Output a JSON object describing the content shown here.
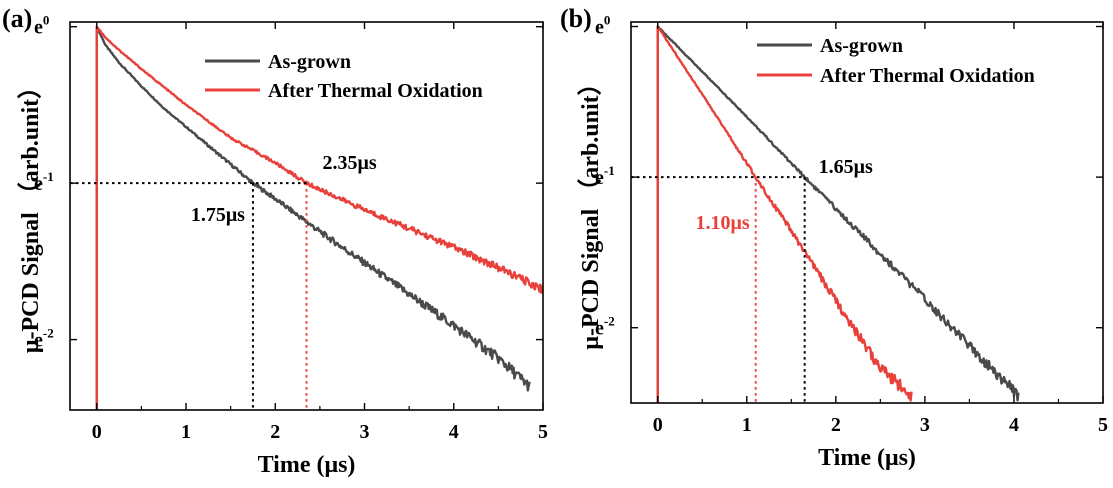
{
  "chart_data": [
    {
      "panel_label": "(a)",
      "type": "line",
      "xlabel": "Time (μs)",
      "ylabel": "μ-PCD Signal （arb.unit）",
      "xlim": [
        -0.3,
        5
      ],
      "ylim_ln": [
        -2.45,
        0.03
      ],
      "y_scale": "log-e",
      "xticks": [
        0,
        1,
        2,
        3,
        4,
        5
      ],
      "xtick_labels": [
        "0",
        "1",
        "2",
        "3",
        "4",
        "5"
      ],
      "yticks_ln": [
        0,
        -1,
        -2
      ],
      "ytick_labels": [
        {
          "base": "e",
          "exp": "0"
        },
        {
          "base": "e",
          "exp": "-1"
        },
        {
          "base": "e",
          "exp": "-2"
        }
      ],
      "legend_position": "top-right",
      "series": [
        {
          "name": "As-grown",
          "color": "#4a4a4a",
          "lifetime_us": 1.75,
          "end_x": 4.85,
          "x": [
            0,
            0.1,
            0.25,
            0.5,
            0.75,
            1.0,
            1.25,
            1.5,
            1.75,
            2.0,
            2.5,
            3.0,
            3.5,
            4.0,
            4.5,
            4.85
          ],
          "y_ln": [
            0,
            -0.12,
            -0.23,
            -0.38,
            -0.52,
            -0.64,
            -0.76,
            -0.88,
            -1.0,
            -1.1,
            -1.31,
            -1.51,
            -1.71,
            -1.91,
            -2.12,
            -2.3
          ]
        },
        {
          "name": "After Thermal Oxidation",
          "color": "#e8403a",
          "lifetime_us": 2.35,
          "end_x": 5.0,
          "x": [
            0,
            0.1,
            0.25,
            0.5,
            1.0,
            1.5,
            2.0,
            2.35,
            2.5,
            3.0,
            3.5,
            4.0,
            4.5,
            5.0
          ],
          "y_ln": [
            0,
            -0.07,
            -0.15,
            -0.27,
            -0.5,
            -0.71,
            -0.87,
            -1.0,
            -1.04,
            -1.17,
            -1.29,
            -1.41,
            -1.54,
            -1.68
          ]
        }
      ],
      "annotations": [
        {
          "text": "2.35μs",
          "x": 2.35,
          "y_ln": -1.0,
          "color": "#000000"
        },
        {
          "text": "1.75μs",
          "x": 1.75,
          "y_ln": -1.0,
          "color": "#000000"
        }
      ]
    },
    {
      "panel_label": "(b)",
      "type": "line",
      "xlabel": "Time (μs)",
      "ylabel": "μ-PCD Signal （arb.unit）",
      "xlim": [
        -0.3,
        5
      ],
      "ylim_ln": [
        -2.5,
        0.03
      ],
      "y_scale": "log-e",
      "xticks": [
        0,
        1,
        2,
        3,
        4,
        5
      ],
      "xtick_labels": [
        "0",
        "1",
        "2",
        "3",
        "4",
        "5"
      ],
      "yticks_ln": [
        0,
        -1,
        -2
      ],
      "ytick_labels": [
        {
          "base": "e",
          "exp": "0"
        },
        {
          "base": "e",
          "exp": "-1"
        },
        {
          "base": "e",
          "exp": "-2"
        }
      ],
      "legend_position": "top-right",
      "series": [
        {
          "name": "As-grown",
          "color": "#4a4a4a",
          "lifetime_us": 1.65,
          "end_x": 4.05,
          "x": [
            0,
            0.5,
            1.0,
            1.65,
            2.0,
            2.5,
            3.0,
            3.5,
            4.05
          ],
          "y_ln": [
            0,
            -0.3,
            -0.6,
            -1.0,
            -1.21,
            -1.51,
            -1.81,
            -2.12,
            -2.45
          ]
        },
        {
          "name": "After Thermal Oxidation",
          "color": "#e8403a",
          "lifetime_us": 1.1,
          "end_x": 2.85,
          "x": [
            0,
            0.5,
            1.1,
            1.5,
            2.0,
            2.5,
            2.85
          ],
          "y_ln": [
            0,
            -0.45,
            -1.0,
            -1.36,
            -1.82,
            -2.27,
            -2.45
          ]
        }
      ],
      "annotations": [
        {
          "text": "1.65μs",
          "x": 1.65,
          "y_ln": -1.0,
          "color": "#000000"
        },
        {
          "text": "1.10μs",
          "x": 1.1,
          "y_ln": -1.0,
          "color": "#e8403a"
        }
      ]
    }
  ]
}
